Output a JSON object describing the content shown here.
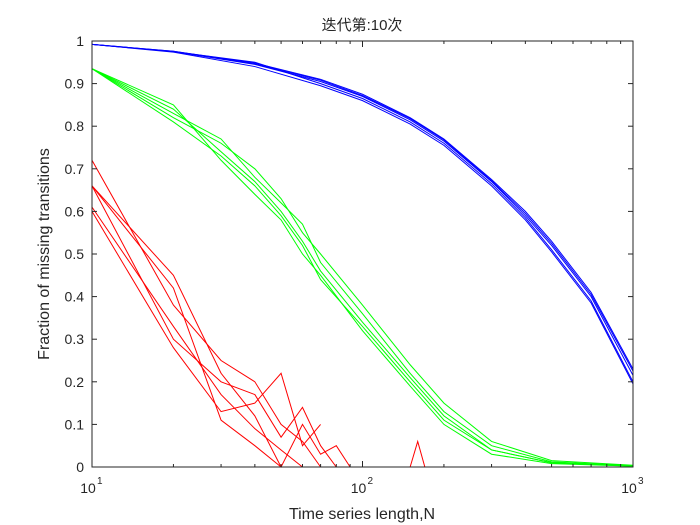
{
  "chart_data": {
    "type": "line",
    "title": "迭代第:10次",
    "xlabel": "Time series length,N",
    "ylabel": "Fraction of missing transitions",
    "xscale": "log",
    "xlim": [
      10,
      1000
    ],
    "ylim": [
      0,
      1
    ],
    "grid": false,
    "legend": "none",
    "x_ticks": [
      {
        "value": 10,
        "base": "10",
        "exp": "1"
      },
      {
        "value": 100,
        "base": "10",
        "exp": "2"
      },
      {
        "value": 1000,
        "base": "10",
        "exp": "3"
      }
    ],
    "y_ticks": [
      {
        "value": 0,
        "label": "0"
      },
      {
        "value": 0.1,
        "label": "0.1"
      },
      {
        "value": 0.2,
        "label": "0.2"
      },
      {
        "value": 0.3,
        "label": "0.3"
      },
      {
        "value": 0.4,
        "label": "0.4"
      },
      {
        "value": 0.5,
        "label": "0.5"
      },
      {
        "value": 0.6,
        "label": "0.6"
      },
      {
        "value": 0.7,
        "label": "0.7"
      },
      {
        "value": 0.8,
        "label": "0.8"
      },
      {
        "value": 0.9,
        "label": "0.9"
      },
      {
        "value": 1,
        "label": "1"
      }
    ],
    "series": [
      {
        "color": "#0000ff",
        "x": [
          10,
          20,
          40,
          70,
          100,
          150,
          200,
          300,
          400,
          500,
          700,
          1000
        ],
        "values": [
          0.992,
          0.975,
          0.945,
          0.905,
          0.87,
          0.815,
          0.765,
          0.67,
          0.59,
          0.52,
          0.4,
          0.215
        ]
      },
      {
        "color": "#0000ff",
        "x": [
          10,
          20,
          40,
          70,
          100,
          150,
          200,
          300,
          400,
          500,
          700,
          1000
        ],
        "values": [
          0.992,
          0.975,
          0.95,
          0.9,
          0.865,
          0.81,
          0.76,
          0.665,
          0.585,
          0.51,
          0.39,
          0.2
        ]
      },
      {
        "color": "#0000ff",
        "x": [
          10,
          20,
          40,
          70,
          100,
          150,
          200,
          300,
          400,
          500,
          700,
          1000
        ],
        "values": [
          0.992,
          0.976,
          0.948,
          0.91,
          0.875,
          0.82,
          0.77,
          0.675,
          0.6,
          0.53,
          0.41,
          0.23
        ]
      },
      {
        "color": "#0000ff",
        "x": [
          10,
          20,
          40,
          70,
          100,
          150,
          200,
          300,
          400,
          500,
          700,
          1000
        ],
        "values": [
          0.992,
          0.974,
          0.94,
          0.895,
          0.86,
          0.805,
          0.755,
          0.66,
          0.58,
          0.505,
          0.385,
          0.195
        ]
      },
      {
        "color": "#0000ff",
        "x": [
          10,
          20,
          40,
          70,
          100,
          150,
          200,
          300,
          400,
          500,
          700,
          1000
        ],
        "values": [
          0.992,
          0.976,
          0.946,
          0.908,
          0.872,
          0.818,
          0.768,
          0.672,
          0.595,
          0.525,
          0.405,
          0.225
        ]
      },
      {
        "color": "#00ff00",
        "x": [
          10,
          20,
          30,
          40,
          50,
          60,
          70,
          100,
          150,
          200,
          300,
          500,
          1000
        ],
        "values": [
          0.935,
          0.84,
          0.74,
          0.67,
          0.6,
          0.53,
          0.46,
          0.34,
          0.21,
          0.12,
          0.04,
          0.01,
          0.003
        ]
      },
      {
        "color": "#00ff00",
        "x": [
          10,
          20,
          30,
          40,
          50,
          60,
          70,
          100,
          150,
          200,
          300,
          500,
          1000
        ],
        "values": [
          0.935,
          0.82,
          0.76,
          0.7,
          0.63,
          0.55,
          0.5,
          0.38,
          0.24,
          0.15,
          0.06,
          0.015,
          0.004
        ]
      },
      {
        "color": "#00ff00",
        "x": [
          10,
          20,
          30,
          40,
          50,
          60,
          70,
          100,
          150,
          200,
          300,
          500,
          1000
        ],
        "values": [
          0.935,
          0.85,
          0.72,
          0.64,
          0.58,
          0.5,
          0.45,
          0.32,
          0.19,
          0.1,
          0.03,
          0.008,
          0.002
        ]
      },
      {
        "color": "#00ff00",
        "x": [
          10,
          20,
          30,
          40,
          50,
          60,
          70,
          100,
          150,
          200,
          300,
          500,
          1000
        ],
        "values": [
          0.935,
          0.83,
          0.77,
          0.68,
          0.62,
          0.57,
          0.48,
          0.36,
          0.22,
          0.13,
          0.05,
          0.012,
          0.003
        ]
      },
      {
        "color": "#00ff00",
        "x": [
          10,
          20,
          30,
          40,
          50,
          60,
          70,
          100,
          150,
          200,
          300,
          500,
          1000
        ],
        "values": [
          0.935,
          0.81,
          0.73,
          0.66,
          0.59,
          0.52,
          0.44,
          0.33,
          0.2,
          0.11,
          0.04,
          0.01,
          0.002
        ]
      },
      {
        "color": "#ff0000",
        "x": [
          10,
          20,
          30,
          40,
          50,
          60,
          70
        ],
        "values": [
          0.66,
          0.45,
          0.22,
          0.12,
          0,
          0,
          0
        ]
      },
      {
        "color": "#ff0000",
        "x": [
          10,
          20,
          30,
          40,
          50,
          60,
          70
        ],
        "values": [
          0.61,
          0.33,
          0.17,
          0.09,
          0.04,
          0,
          0
        ]
      },
      {
        "color": "#ff0000",
        "x": [
          10,
          20,
          30,
          40,
          50,
          60,
          70
        ],
        "values": [
          0.72,
          0.38,
          0.25,
          0.2,
          0.1,
          0.06,
          0
        ]
      },
      {
        "color": "#ff0000",
        "x": [
          10,
          20,
          30,
          40,
          50,
          60,
          70
        ],
        "values": [
          0.6,
          0.28,
          0.13,
          0.15,
          0.22,
          0.05,
          0.1
        ]
      },
      {
        "color": "#ff0000",
        "x": [
          10,
          20,
          30,
          40,
          50,
          60,
          70,
          80,
          90
        ],
        "values": [
          0.66,
          0.42,
          0.11,
          0.05,
          0,
          0.1,
          0.03,
          0.05,
          0
        ]
      },
      {
        "color": "#ff0000",
        "x": [
          10,
          20,
          30,
          40,
          50,
          60,
          70,
          80,
          100,
          150,
          160,
          170
        ],
        "values": [
          0.66,
          0.3,
          0.2,
          0.17,
          0.07,
          0.14,
          0.05,
          0,
          0,
          0,
          0.06,
          0
        ]
      }
    ]
  }
}
